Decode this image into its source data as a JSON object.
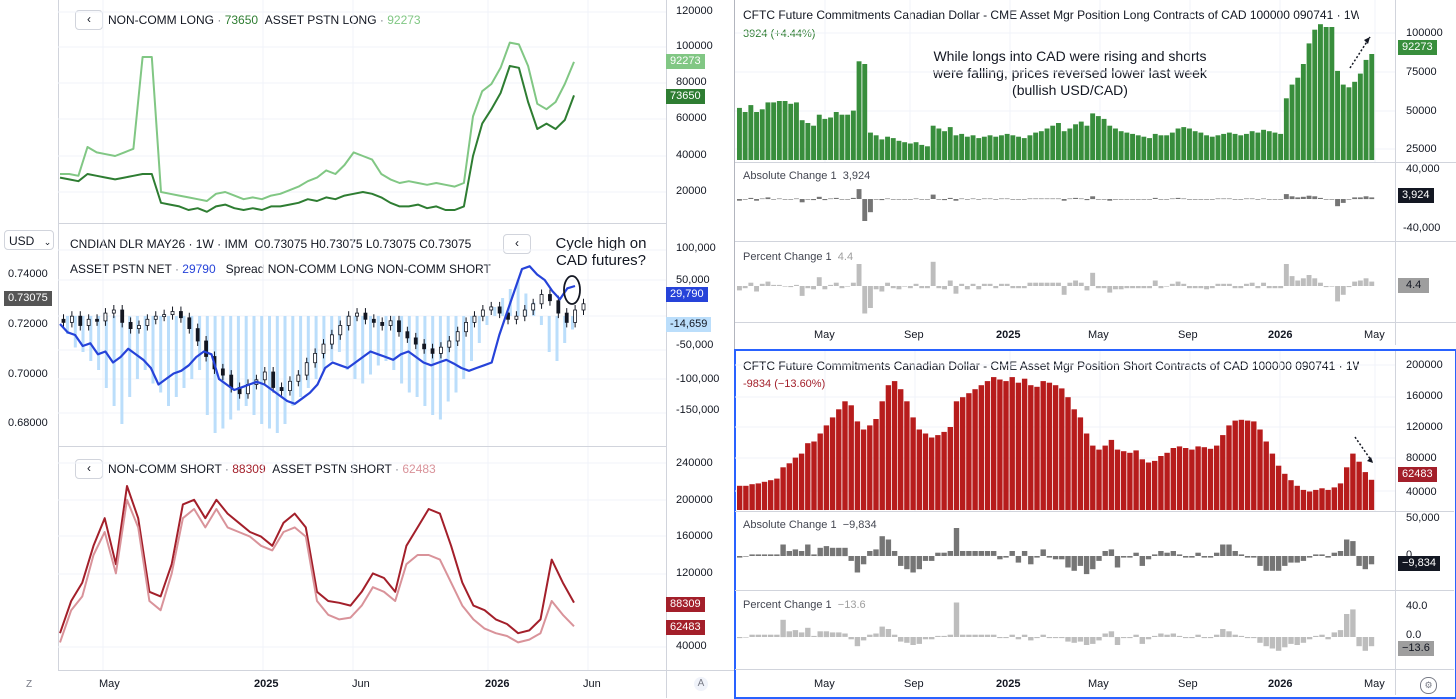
{
  "left": {
    "top": {
      "nav_glyph": "‹",
      "legend1_label": "NON-COMM LONG",
      "legend1_value": "73650",
      "legend2_label": "ASSET PSTN LONG",
      "legend2_value": "92273",
      "badge1": "92273",
      "badge2": "73650",
      "y_ticks": [
        "120000",
        "100000",
        "80000",
        "60000",
        "40000",
        "20000"
      ]
    },
    "middle": {
      "currency_button": "USD",
      "title": "CNDIAN DLR MAY26 · 1W · IMM",
      "ohlc": "O0.73075 H0.73075 L0.73075 C0.73075",
      "legend_net_label": "ASSET PSTN NET",
      "legend_net_value": "29790",
      "legend_spread": "Spread NON-COMM LONG NON-COMM SHORT",
      "annotation": "Cycle high on CAD futures?",
      "price_ticks": [
        "0.74000",
        "0.72000",
        "0.70000",
        "0.68000"
      ],
      "price_badge": "0.73075",
      "right_ticks": [
        "100,000",
        "50,000",
        "-50,000",
        "-100,000",
        "-150,000"
      ],
      "badge_net": "29,790",
      "badge_spread": "-14,659"
    },
    "bottom": {
      "legend1_label": "NON-COMM SHORT",
      "legend1_value": "88309",
      "legend2_label": "ASSET PSTN SHORT",
      "legend2_value": "62483",
      "badge1": "88309",
      "badge2": "62483",
      "y_ticks": [
        "240000",
        "200000",
        "160000",
        "120000",
        "40000"
      ]
    },
    "x_labels": [
      "May",
      "2025",
      "Jun",
      "2026",
      "Jun"
    ],
    "corner_z": "Z",
    "corner_a": "A"
  },
  "right": {
    "top": {
      "title": "CFTC Future Commitments Canadian Dollar - CME Asset Mgr Position Long Contracts of CAD 100000 090741 · 1W",
      "change": "3924 (+4.44%)",
      "annotation": "While longs into CAD were rising and shorts were falling, prices reversed lower last week (bullish USD/CAD)",
      "badge": "92273",
      "y_ticks": [
        "100000",
        "75000",
        "50000",
        "25000"
      ]
    },
    "top_abs": {
      "label": "Absolute Change 1",
      "value": "3,924",
      "badge": "3,924",
      "y_ticks": [
        "40,000",
        "-40,000"
      ]
    },
    "top_pct": {
      "label": "Percent Change 1",
      "value": "4.4",
      "badge": "4.4"
    },
    "top_x": [
      "May",
      "Sep",
      "2025",
      "May",
      "Sep",
      "2026",
      "May"
    ],
    "bottom": {
      "title": "CFTC Future Commitments Canadian Dollar - CME Asset Mgr Position Short Contracts of CAD 100000 090741 · 1W",
      "change": "-9834 (−13.60%)",
      "badge": "62483",
      "y_ticks": [
        "200000",
        "160000",
        "120000",
        "80000",
        "40000"
      ]
    },
    "bottom_abs": {
      "label": "Absolute Change 1",
      "value": "−9,834",
      "badge": "−9,834",
      "y_ticks": [
        "50,000",
        "0"
      ]
    },
    "bottom_pct": {
      "label": "Percent Change 1",
      "value": "−13.6",
      "badge": "−13.6",
      "y_ticks": [
        "40.0",
        "0.0"
      ]
    },
    "bottom_x": [
      "May",
      "Sep",
      "2025",
      "May",
      "Sep",
      "2026",
      "May"
    ]
  },
  "colors": {
    "dark_green": "#2e7d32",
    "light_green": "#81c784",
    "dark_red": "#a31f2a",
    "light_red": "#d9939a",
    "blue": "#2643d9",
    "light_blue": "#bbdefb",
    "bar_green": "#388e3c",
    "bar_red": "#b71c1c",
    "gray_bar": "#757575",
    "light_gray_bar": "#bdbdbd"
  },
  "chart_data": [
    {
      "type": "line",
      "name": "top-left",
      "ylim": [
        0,
        120000
      ],
      "series": [
        {
          "name": "ASSET PSTN LONG",
          "values": [
            30000,
            30000,
            29000,
            45000,
            42000,
            41000,
            40000,
            42000,
            44000,
            95000,
            95000,
            20000,
            19000,
            18000,
            17000,
            16000,
            15000,
            19000,
            20000,
            18000,
            16000,
            17000,
            16000,
            18000,
            19000,
            21000,
            23000,
            26000,
            28000,
            32000,
            30000,
            35000,
            42000,
            40000,
            38000,
            30000,
            27000,
            25000,
            26000,
            25000,
            24000,
            25000,
            24000,
            23000,
            25000,
            62000,
            76000,
            80000,
            89000,
            103000,
            102000,
            90000,
            69000,
            66000,
            70000,
            80000,
            92273
          ]
        },
        {
          "name": "NON-COMM LONG",
          "values": [
            28000,
            27000,
            26000,
            30000,
            29000,
            28000,
            27000,
            28000,
            29000,
            30000,
            30000,
            14000,
            13000,
            12000,
            10000,
            11000,
            9000,
            12000,
            13000,
            11000,
            10000,
            11000,
            10000,
            12000,
            12000,
            13000,
            14000,
            16000,
            15000,
            17000,
            16000,
            18000,
            19000,
            20000,
            19000,
            17000,
            14000,
            12000,
            12000,
            13000,
            11000,
            12000,
            10000,
            10000,
            12000,
            40000,
            58000,
            66000,
            75000,
            90000,
            89000,
            70000,
            55000,
            58000,
            55000,
            60000,
            73650
          ]
        }
      ]
    },
    {
      "type": "line",
      "name": "bottom-left",
      "ylim": [
        0,
        260000
      ],
      "series": [
        {
          "name": "NON-COMM SHORT",
          "values": [
            55000,
            90000,
            110000,
            150000,
            180000,
            130000,
            215000,
            180000,
            100000,
            95000,
            130000,
            195000,
            200000,
            180000,
            200000,
            185000,
            175000,
            165000,
            160000,
            150000,
            175000,
            185000,
            170000,
            100000,
            90000,
            88000,
            85000,
            100000,
            120000,
            115000,
            100000,
            150000,
            170000,
            190000,
            185000,
            150000,
            110000,
            85000,
            80000,
            70000,
            65000,
            55000,
            58000,
            70000,
            135000,
            110000,
            88309
          ]
        },
        {
          "name": "ASSET PSTN SHORT",
          "values": [
            45000,
            80000,
            95000,
            140000,
            165000,
            120000,
            200000,
            170000,
            90000,
            80000,
            120000,
            180000,
            190000,
            170000,
            190000,
            170000,
            165000,
            160000,
            150000,
            145000,
            165000,
            170000,
            160000,
            90000,
            75000,
            70000,
            72000,
            85000,
            105000,
            100000,
            90000,
            130000,
            140000,
            140000,
            135000,
            110000,
            85000,
            70000,
            60000,
            55000,
            52000,
            45000,
            48000,
            55000,
            90000,
            75000,
            62483
          ]
        }
      ]
    },
    {
      "type": "bar",
      "name": "CFTC Asset Mgr Long",
      "ylim": [
        15000,
        120000
      ],
      "values": [
        53000,
        50000,
        55000,
        50000,
        52000,
        57000,
        57000,
        58000,
        58000,
        56000,
        57000,
        44000,
        42000,
        40000,
        48000,
        45000,
        46000,
        50000,
        48000,
        48000,
        51000,
        87000,
        85000,
        35000,
        33000,
        30000,
        32000,
        31000,
        29000,
        28000,
        27000,
        28000,
        26000,
        25000,
        40000,
        38000,
        36000,
        39000,
        33000,
        34000,
        32000,
        33000,
        31000,
        32000,
        33000,
        32000,
        33000,
        34000,
        33000,
        32000,
        31000,
        33000,
        35000,
        36000,
        38000,
        40000,
        42000,
        36000,
        38000,
        41000,
        43000,
        40000,
        49000,
        47000,
        45000,
        40000,
        38000,
        36000,
        35000,
        34000,
        33000,
        32000,
        31000,
        34000,
        33000,
        33000,
        35000,
        38000,
        39000,
        38000,
        36000,
        35000,
        33000,
        32000,
        33000,
        34000,
        35000,
        34000,
        33000,
        34000,
        36000,
        35000,
        37000,
        36000,
        35000,
        34000,
        60000,
        70000,
        75000,
        85000,
        100000,
        110000,
        114000,
        112000,
        112000,
        80000,
        70000,
        68000,
        72000,
        78000,
        88000,
        92273
      ]
    },
    {
      "type": "bar",
      "name": "CFTC Asset Mgr Short",
      "ylim": [
        25000,
        210000
      ],
      "values": [
        55000,
        55000,
        57000,
        58000,
        60000,
        62000,
        64000,
        78000,
        83000,
        90000,
        95000,
        108000,
        110000,
        120000,
        130000,
        140000,
        150000,
        160000,
        155000,
        135000,
        125000,
        130000,
        138000,
        160000,
        180000,
        185000,
        175000,
        160000,
        140000,
        125000,
        120000,
        115000,
        118000,
        122000,
        128000,
        160000,
        165000,
        170000,
        175000,
        180000,
        185000,
        190000,
        187000,
        185000,
        190000,
        183000,
        188000,
        180000,
        178000,
        185000,
        183000,
        180000,
        176000,
        165000,
        150000,
        140000,
        120000,
        105000,
        100000,
        105000,
        112000,
        100000,
        98000,
        96000,
        99000,
        88000,
        84000,
        86000,
        92000,
        96000,
        102000,
        104000,
        102000,
        100000,
        104000,
        103000,
        101000,
        105000,
        118000,
        130000,
        136000,
        137000,
        136000,
        135000,
        125000,
        110000,
        95000,
        80000,
        70000,
        62000,
        55000,
        50000,
        48000,
        50000,
        52000,
        50000,
        53000,
        58000,
        78000,
        95000,
        85000,
        72000,
        62483
      ]
    }
  ]
}
